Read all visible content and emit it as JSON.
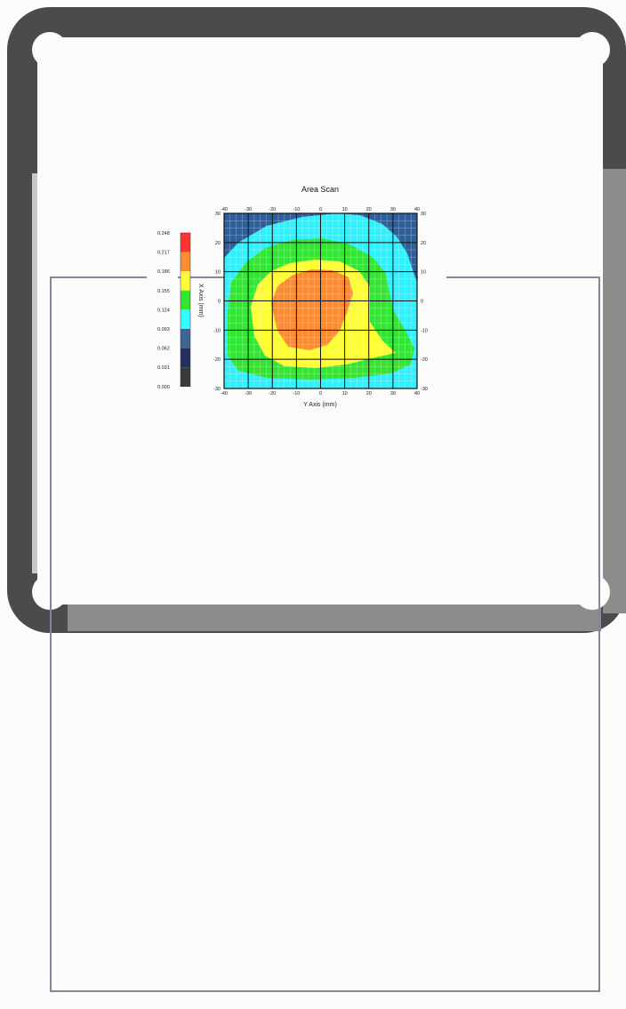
{
  "chart_data": {
    "type": "heatmap",
    "title": "Area Scan",
    "xlabel": "Y Axis (mm)",
    "ylabel": "X Axis (mm)",
    "x_ticks": [
      -40,
      -30,
      -20,
      -10,
      0,
      10,
      20,
      30,
      40
    ],
    "y_ticks": [
      30,
      20,
      10,
      0,
      -10,
      -20,
      -30
    ],
    "xlim": [
      -40,
      40
    ],
    "ylim": [
      -30,
      30
    ],
    "grid": true,
    "colorbar": {
      "position": "left",
      "levels": [
        "0.248",
        "0.217",
        "0.186",
        "0.155",
        "0.124",
        "0.093",
        "0.062",
        "0.031",
        "0.000"
      ],
      "colors": [
        "#ff3333",
        "#ff8c33",
        "#ffff33",
        "#33e633",
        "#33ffff",
        "#3f6596",
        "#25305f",
        "#3a3a3a"
      ]
    },
    "contour_colors": {
      "outer": "#2f5f9a",
      "cyan": "#33f0ff",
      "green": "#33e633",
      "yellow": "#ffff33",
      "orange": "#ff8c33"
    }
  }
}
